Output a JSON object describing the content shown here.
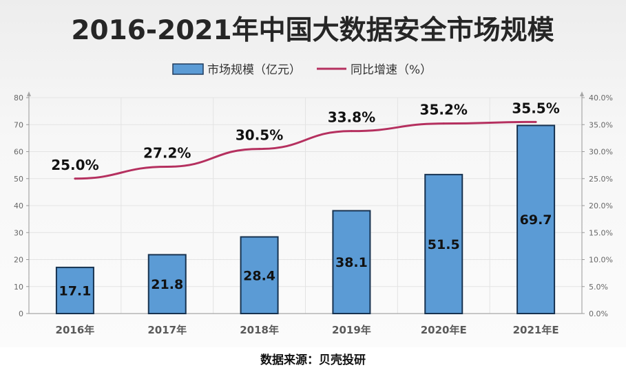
{
  "chart_data": {
    "type": "bar",
    "title": "2016-2021年中国大数据安全市场规模",
    "categories": [
      "2016年",
      "2017年",
      "2018年",
      "2019年",
      "2020年E",
      "2021年E"
    ],
    "series": [
      {
        "name": "市场规模（亿元）",
        "type": "bar",
        "axis": "left",
        "values": [
          17.1,
          21.8,
          28.4,
          38.1,
          51.5,
          69.7
        ],
        "labels": [
          "17.1",
          "21.8",
          "28.4",
          "38.1",
          "51.5",
          "69.7"
        ],
        "color": "#5b9bd5"
      },
      {
        "name": "同比增速（%）",
        "type": "line",
        "axis": "right",
        "values": [
          25.0,
          27.2,
          30.5,
          33.8,
          35.2,
          35.5
        ],
        "labels": [
          "25.0%",
          "27.2%",
          "30.5%",
          "33.8%",
          "35.2%",
          "35.5%"
        ],
        "color": "#b5305f"
      }
    ],
    "y_left": {
      "min": 0,
      "max": 80,
      "ticks": [
        "0",
        "10",
        "20",
        "30",
        "40",
        "50",
        "60",
        "70",
        "80"
      ]
    },
    "y_right": {
      "min": 0,
      "max": 40,
      "ticks": [
        "0.0%",
        "5.0%",
        "10.0%",
        "15.0%",
        "20.0%",
        "25.0%",
        "30.0%",
        "35.0%",
        "40.0%"
      ]
    },
    "grid": true,
    "legend_position": "top"
  },
  "source": "数据来源：贝壳投研"
}
